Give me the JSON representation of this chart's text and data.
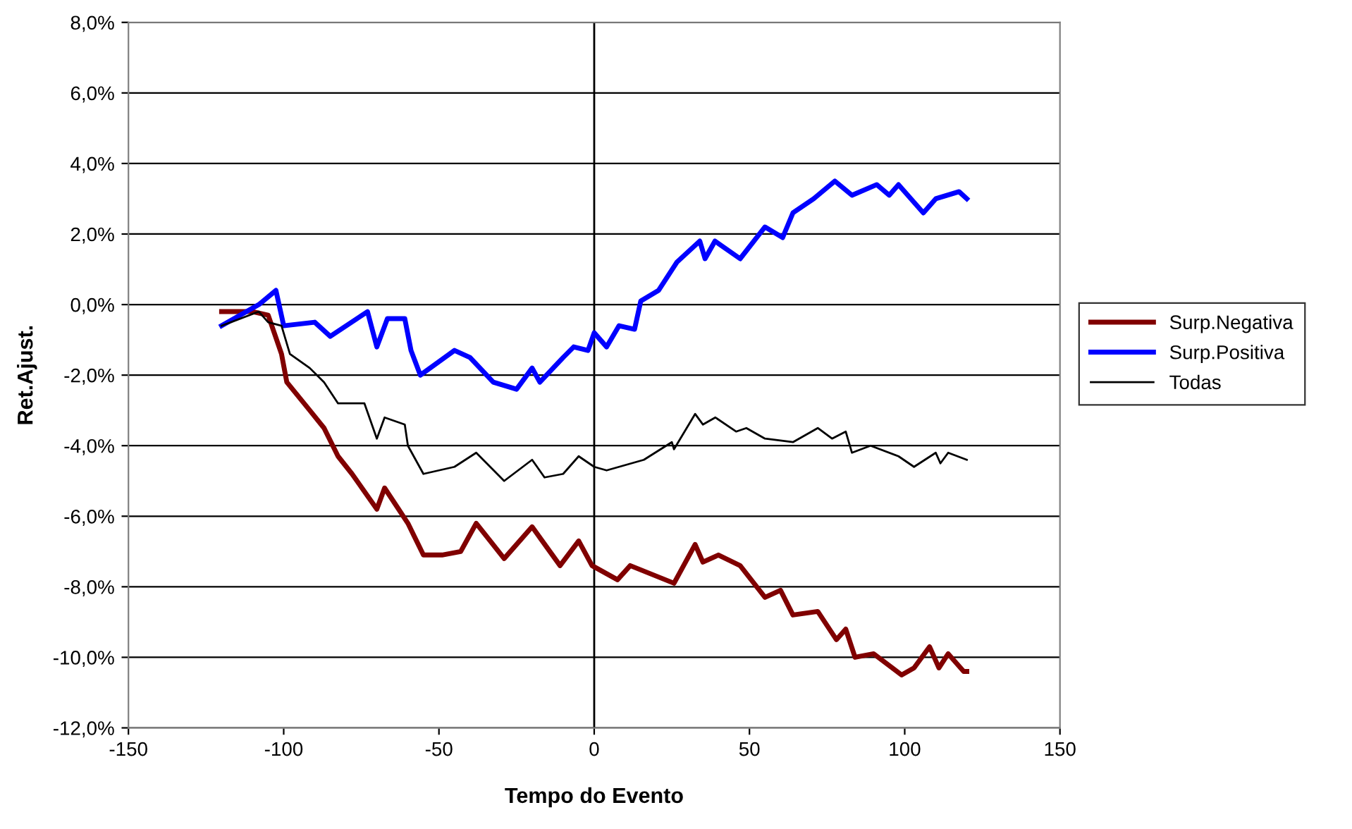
{
  "chart_data": {
    "type": "line",
    "xlabel": "Tempo do Evento",
    "ylabel": "Ret.Ajust.",
    "xlim": [
      -150,
      150
    ],
    "xticks": [
      -150,
      -100,
      -50,
      0,
      50,
      100,
      150
    ],
    "ylim": [
      -12,
      8
    ],
    "yticks": [
      {
        "value": -12,
        "label": "-12,0%"
      },
      {
        "value": -10,
        "label": "-10,0%"
      },
      {
        "value": -8,
        "label": "-8,0%"
      },
      {
        "value": -6,
        "label": "-6,0%"
      },
      {
        "value": -4,
        "label": "-4,0%"
      },
      {
        "value": -2,
        "label": "-2,0%"
      },
      {
        "value": 0,
        "label": "0,0%"
      },
      {
        "value": 2,
        "label": "2,0%"
      },
      {
        "value": 4,
        "label": "4,0%"
      },
      {
        "value": 6,
        "label": "6,0%"
      },
      {
        "value": 8,
        "label": "8,0%"
      }
    ],
    "grid": "y",
    "legend": "right",
    "marker": "none",
    "line_style": "solid",
    "ref_lines": [
      {
        "axis": "x",
        "value": 0,
        "color": "#000000"
      }
    ],
    "series": [
      {
        "name": "Surp.Negativa",
        "color": "#800000",
        "x": [
          -120,
          -110,
          -105,
          -100.7,
          -99,
          -91.6,
          -87,
          -82.5,
          -78,
          -70,
          -67.5,
          -63,
          -60,
          -55,
          -49,
          -43,
          -38,
          -29,
          -20,
          -11,
          -5,
          -0.7,
          7.5,
          11.6,
          25.7,
          32.5,
          35,
          40,
          47,
          55,
          60,
          64,
          72,
          78,
          81,
          84,
          90,
          99,
          103,
          108,
          111,
          114,
          119,
          120
        ],
        "values": [
          -0.2,
          -0.2,
          -0.3,
          -1.4,
          -2.2,
          -3.0,
          -3.5,
          -4.3,
          -4.8,
          -5.8,
          -5.2,
          -5.8,
          -6.2,
          -7.1,
          -7.1,
          -7.0,
          -6.2,
          -7.2,
          -6.3,
          -7.4,
          -6.7,
          -7.4,
          -7.8,
          -7.4,
          -7.9,
          -6.8,
          -7.3,
          -7.1,
          -7.4,
          -8.3,
          -8.1,
          -8.8,
          -8.7,
          -9.5,
          -9.2,
          -10.0,
          -9.9,
          -10.5,
          -10.3,
          -9.7,
          -10.3,
          -9.9,
          -10.4,
          -10.4
        ]
      },
      {
        "name": "Surp.Positiva",
        "color": "#0000ff",
        "x": [
          -120,
          -108,
          -102.5,
          -100,
          -90,
          -85,
          -73,
          -70,
          -66.6,
          -61,
          -59,
          -56,
          -45,
          -40,
          -32.5,
          -25,
          -20,
          -17.5,
          -10,
          -6.6,
          -2,
          0,
          4,
          8,
          13,
          15,
          20.7,
          26.6,
          34,
          35.7,
          38.9,
          47,
          55,
          60.7,
          64,
          70.7,
          77.5,
          83,
          91,
          95,
          98,
          106,
          110,
          117.5,
          120
        ],
        "values": [
          -0.6,
          0.0,
          0.4,
          -0.6,
          -0.5,
          -0.9,
          -0.2,
          -1.2,
          -0.4,
          -0.4,
          -1.3,
          -2.0,
          -1.3,
          -1.5,
          -2.2,
          -2.4,
          -1.8,
          -2.2,
          -1.5,
          -1.2,
          -1.3,
          -0.8,
          -1.2,
          -0.6,
          -0.7,
          0.1,
          0.4,
          1.2,
          1.8,
          1.3,
          1.8,
          1.3,
          2.2,
          1.9,
          2.6,
          3.0,
          3.5,
          3.1,
          3.4,
          3.1,
          3.4,
          2.6,
          3.0,
          3.2,
          3.0
        ]
      },
      {
        "name": "Todas",
        "color": "#000000",
        "x": [
          -120,
          -108,
          -105,
          -100.7,
          -98,
          -91.6,
          -87,
          -82.5,
          -74,
          -70,
          -67.5,
          -61,
          -60,
          -55,
          -45,
          -38,
          -29,
          -20,
          -16,
          -10,
          -5,
          0,
          4,
          16,
          25,
          25.7,
          32.5,
          35,
          39,
          45.7,
          49,
          55,
          64,
          72,
          76.6,
          81,
          83,
          89,
          98,
          103,
          110,
          111.5,
          114,
          120
        ],
        "values": [
          -0.6,
          -0.2,
          -0.5,
          -0.6,
          -1.4,
          -1.8,
          -2.2,
          -2.8,
          -2.8,
          -3.8,
          -3.2,
          -3.4,
          -4.0,
          -4.8,
          -4.6,
          -4.2,
          -5.0,
          -4.4,
          -4.9,
          -4.8,
          -4.3,
          -4.6,
          -4.7,
          -4.4,
          -3.9,
          -4.1,
          -3.1,
          -3.4,
          -3.2,
          -3.6,
          -3.5,
          -3.8,
          -3.9,
          -3.5,
          -3.8,
          -3.6,
          -4.2,
          -4.0,
          -4.3,
          -4.6,
          -4.2,
          -4.5,
          -4.2,
          -4.4
        ]
      }
    ]
  }
}
